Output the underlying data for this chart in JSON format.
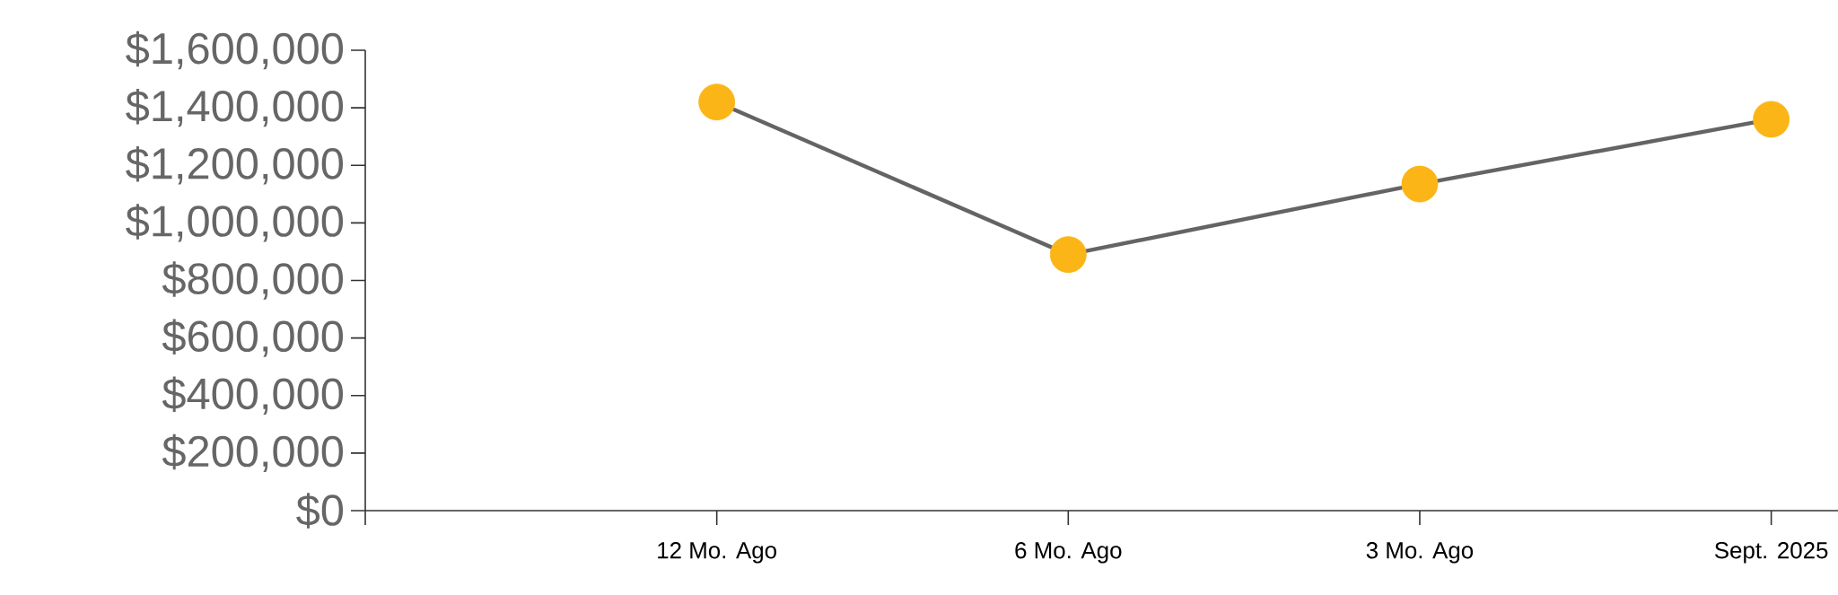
{
  "chart_data": {
    "type": "line",
    "categories": [
      null,
      "12 Mo. Ago",
      "6 Mo. Ago",
      "3 Mo. Ago",
      "Sept. 2025"
    ],
    "series": [
      {
        "color": "#646464",
        "colors": [
          "#fbb516",
          "#fbb516",
          "#fbb516",
          "#fbb516",
          "#fbb516"
        ],
        "values": [
          null,
          1420000,
          890000,
          1135000,
          1360000
        ]
      }
    ],
    "ylim": [
      0,
      1600000
    ],
    "yticks": [
      {
        "value": 0,
        "label": "$0"
      },
      {
        "value": 200000,
        "label": "$200,000"
      },
      {
        "value": 400000,
        "label": "$400,000"
      },
      {
        "value": 600000,
        "label": "$600,000"
      },
      {
        "value": 800000,
        "label": "$800,000"
      },
      {
        "value": 1000000,
        "label": "$1,000,000"
      },
      {
        "value": 1200000,
        "label": "$1,200,000"
      },
      {
        "value": 1400000,
        "label": "$1,400,000"
      },
      {
        "value": 1600000,
        "label": "$1,600,000"
      }
    ],
    "marker": "circle",
    "line_style": "solid",
    "grid": false
  }
}
